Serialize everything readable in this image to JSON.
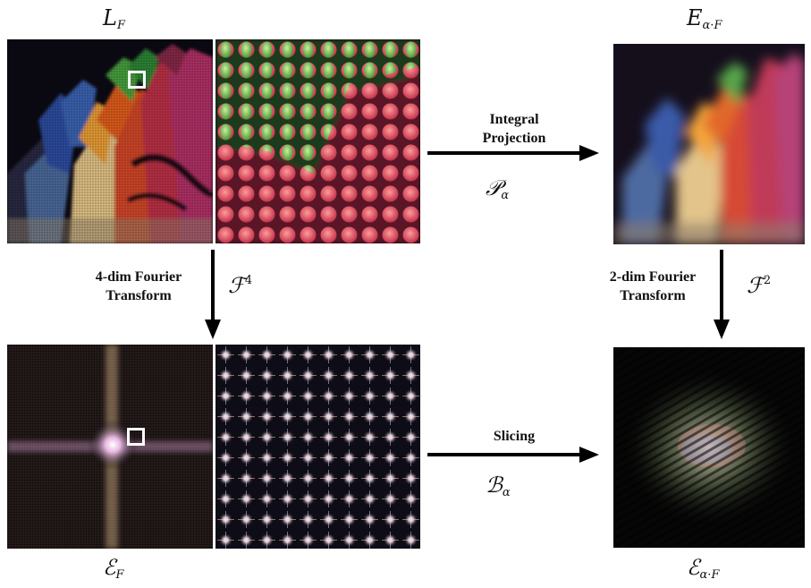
{
  "symbols": {
    "top_left": {
      "main": "L",
      "sub": "F"
    },
    "top_right": {
      "main": "E",
      "sub": "α·F"
    },
    "bottom_left": {
      "main": "ℰ",
      "sub": "F"
    },
    "bottom_right": {
      "main": "ℰ",
      "sub": "α·F"
    }
  },
  "ops": {
    "projection": {
      "line1": "Integral",
      "line2": "Projection",
      "symbol": "𝒫",
      "symbol_sub": "α"
    },
    "fourier4": {
      "line1": "4-dim  Fourier",
      "line2": "Transform",
      "symbol": "ℱ",
      "symbol_sup": "4"
    },
    "fourier2": {
      "line1": "2-dim  Fourier",
      "line2": "Transform",
      "symbol": "ℱ",
      "symbol_sup": "2"
    },
    "slicing": {
      "line1": "Slicing",
      "symbol": "ℬ",
      "symbol_sub": "α"
    }
  },
  "colors": {
    "background": "#ffffff",
    "arrow": "#000000",
    "selection_box": "#ffffff"
  }
}
